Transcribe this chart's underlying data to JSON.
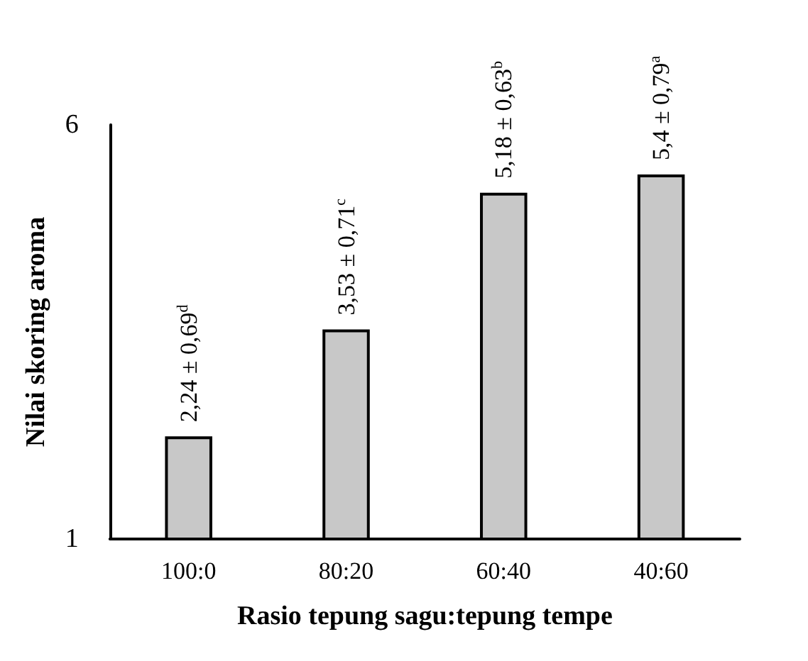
{
  "chart_data": {
    "type": "bar",
    "xlabel": "Rasio tepung sagu:tepung tempe",
    "ylabel": "Nilai skoring aroma",
    "categories": [
      "100:0",
      "80:20",
      "60:40",
      "40:60"
    ],
    "values": [
      2.24,
      3.53,
      5.18,
      5.4
    ],
    "value_labels": [
      "2,24 ± 0,69$^{d}$",
      "3,53 ± 0,71$^{c}$",
      "5,18 ± 0,63$^{b}$",
      "5,4 ± 0,79$^{a}$"
    ],
    "color": "#c8c8c8",
    "ylim": [
      1,
      6
    ],
    "yticks": [
      1,
      6
    ],
    "grid": false
  }
}
